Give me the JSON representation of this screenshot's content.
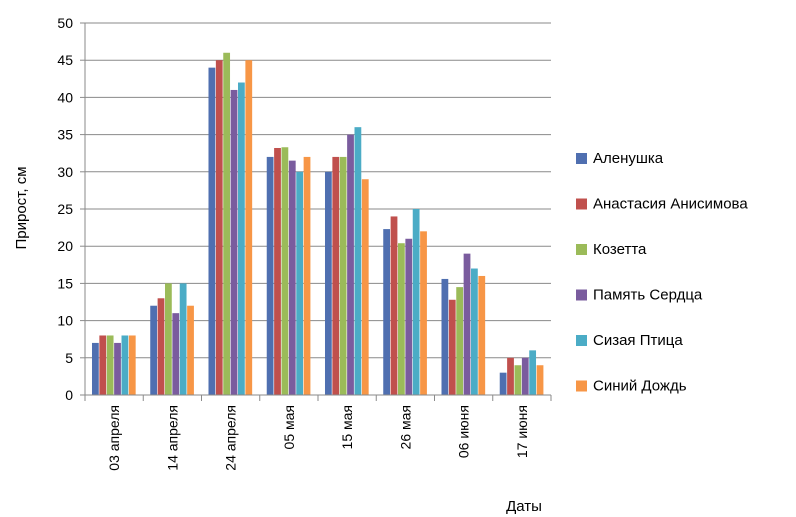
{
  "chart_data": {
    "type": "bar",
    "categories": [
      "03 апреля",
      "14 апреля",
      "24 апреля",
      "05 мая",
      "15 мая",
      "26 мая",
      "06 июня",
      "17 июня"
    ],
    "series": [
      {
        "name": "Аленушка",
        "color": "#4f6fb0",
        "values": [
          7,
          12,
          44,
          32,
          30,
          22.3,
          15.6,
          3
        ]
      },
      {
        "name": "Анастасия Анисимова",
        "color": "#c0504d",
        "values": [
          8,
          13,
          45,
          33.2,
          32,
          24,
          12.8,
          5
        ]
      },
      {
        "name": "Козетта",
        "color": "#9bbb59",
        "values": [
          8,
          15,
          46,
          33.3,
          32,
          20.4,
          14.5,
          4
        ]
      },
      {
        "name": "Память Сердца",
        "color": "#7a5c9e",
        "values": [
          7,
          11,
          41,
          31.5,
          35,
          21,
          19,
          5
        ]
      },
      {
        "name": "Сизая Птица",
        "color": "#4bacc6",
        "values": [
          8,
          15,
          42,
          30,
          36,
          25,
          17,
          6
        ]
      },
      {
        "name": "Синий Дождь",
        "color": "#f79646",
        "values": [
          8,
          12,
          45,
          32,
          29,
          22,
          16,
          4
        ]
      }
    ],
    "xlabel": "Даты",
    "ylabel": "Прирост, см",
    "ylim": [
      0,
      50
    ],
    "yticks": [
      "0",
      "5",
      "10",
      "15",
      "20",
      "25",
      "30",
      "35",
      "40",
      "45",
      "50"
    ],
    "grid": true,
    "legend_position": "right"
  }
}
